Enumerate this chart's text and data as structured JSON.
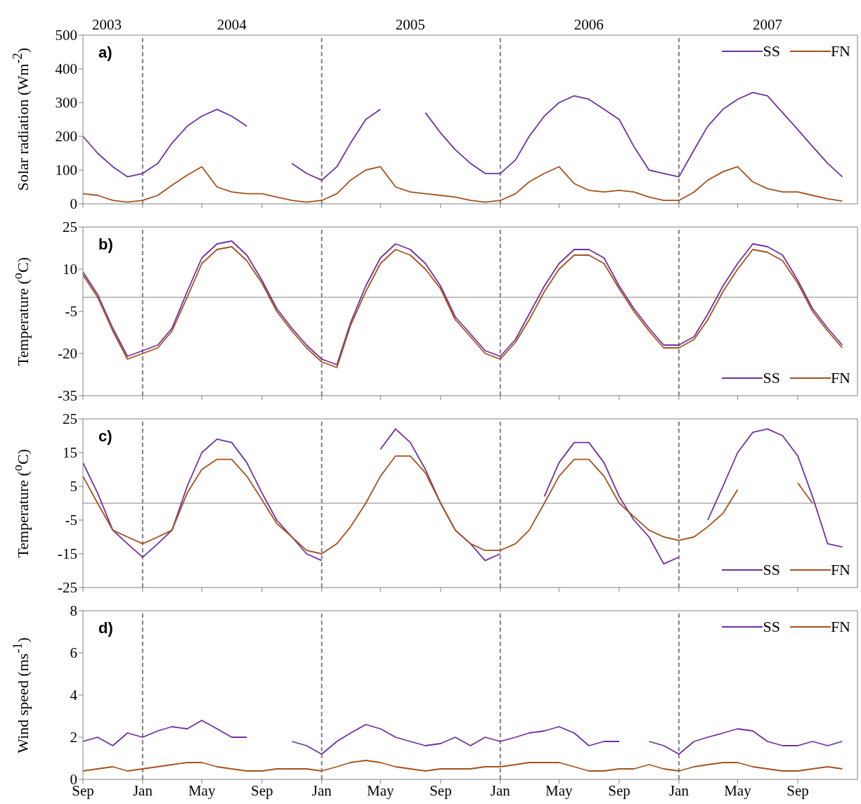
{
  "chart_data": [
    {
      "type": "line",
      "title": "a)",
      "ylabel": "Solar radiation (Wm$^{-2}$)",
      "legend": "top right",
      "tick_labels": "y",
      "x": [
        "2003-09-01",
        "2003-10-01",
        "2003-11-01",
        "2003-12-01",
        "2004-01-01",
        "2004-02-01",
        "2004-03-01",
        "2004-04-01",
        "2004-05-01",
        "2004-06-01",
        "2004-07-01",
        "2004-08-01",
        "2004-09-01",
        "2004-10-01",
        "2004-11-01",
        "2004-12-01",
        "2005-01-01",
        "2005-02-01",
        "2005-03-01",
        "2005-04-01",
        "2005-05-01",
        "2005-06-01",
        "2005-07-01",
        "2005-08-01",
        "2005-09-01",
        "2005-10-01",
        "2005-11-01",
        "2005-12-01",
        "2006-01-01",
        "2006-02-01",
        "2006-03-01",
        "2006-04-01",
        "2006-05-01",
        "2006-06-01",
        "2006-07-01",
        "2006-08-01",
        "2006-09-01",
        "2006-10-01",
        "2006-11-01",
        "2006-12-01",
        "2007-01-01",
        "2007-02-01",
        "2007-03-01",
        "2007-04-01",
        "2007-05-01",
        "2007-06-01",
        "2007-07-01",
        "2007-08-01",
        "2007-09-01",
        "2007-10-01",
        "2007-11-01",
        "2007-12-01"
      ],
      "xlim": [
        "2003-09-01",
        "2008-01-01"
      ],
      "xticks": [
        {
          "value": "2003-09-01",
          "label": null
        },
        {
          "value": "2004-01-01",
          "label": null
        },
        {
          "value": "2004-05-01",
          "label": null
        },
        {
          "value": "2004-09-01",
          "label": null
        },
        {
          "value": "2005-01-01",
          "label": null
        },
        {
          "value": "2005-05-01",
          "label": null
        },
        {
          "value": "2005-09-01",
          "label": null
        },
        {
          "value": "2006-01-01",
          "label": null
        },
        {
          "value": "2006-05-01",
          "label": null
        },
        {
          "value": "2006-09-01",
          "label": null
        },
        {
          "value": "2007-01-01",
          "label": null
        },
        {
          "value": "2007-05-01",
          "label": null
        },
        {
          "value": "2007-09-01",
          "label": null
        }
      ],
      "x2lim": [
        "2003-09-01",
        "2008-01-01"
      ],
      "x2ticks": [
        {
          "value": "2003-10-20",
          "label": "2003"
        },
        {
          "value": "2004-07-01",
          "label": "2004"
        },
        {
          "value": "2005-07-01",
          "label": "2005"
        },
        {
          "value": "2006-07-01",
          "label": "2006"
        },
        {
          "value": "2007-07-01",
          "label": "2007"
        }
      ],
      "ylim": [
        0,
        500
      ],
      "yticks": [
        0,
        100,
        200,
        300,
        400,
        500
      ],
      "ref_lines": [
        {
          "axis": "x",
          "value": "2004-01-01",
          "color": "#808080",
          "line_style": "dashed"
        },
        {
          "axis": "x",
          "value": "2005-01-01",
          "color": "#808080",
          "line_style": "dashed"
        },
        {
          "axis": "x",
          "value": "2006-01-01",
          "color": "#808080",
          "line_style": "dashed"
        },
        {
          "axis": "x",
          "value": "2007-01-01",
          "color": "#808080",
          "line_style": "dashed"
        }
      ],
      "series": [
        {
          "name": "SS",
          "color": "#7030a0",
          "values": [
            200,
            150,
            110,
            80,
            90,
            120,
            180,
            230,
            260,
            280,
            260,
            230,
            null,
            null,
            120,
            90,
            70,
            110,
            180,
            250,
            280,
            null,
            null,
            270,
            210,
            160,
            120,
            90,
            90,
            130,
            200,
            260,
            300,
            320,
            310,
            280,
            250,
            170,
            100,
            90,
            80,
            160,
            230,
            280,
            310,
            330,
            320,
            270,
            220,
            170,
            120,
            80
          ]
        },
        {
          "name": "FN",
          "color": "#a5511c",
          "values": [
            30,
            25,
            10,
            5,
            10,
            25,
            55,
            85,
            110,
            50,
            35,
            30,
            30,
            20,
            10,
            5,
            10,
            30,
            70,
            100,
            110,
            50,
            35,
            30,
            25,
            20,
            10,
            5,
            10,
            30,
            65,
            90,
            110,
            60,
            40,
            35,
            40,
            35,
            20,
            10,
            10,
            35,
            70,
            95,
            110,
            65,
            45,
            35,
            35,
            25,
            15,
            8
          ]
        }
      ]
    },
    {
      "type": "line",
      "title": "b)",
      "ylabel": "Temperature ($^{o}$C)",
      "legend": "bottom right",
      "tick_labels": "y",
      "x": [
        "2003-09-01",
        "2003-10-01",
        "2003-11-01",
        "2003-12-01",
        "2004-01-01",
        "2004-02-01",
        "2004-03-01",
        "2004-04-01",
        "2004-05-01",
        "2004-06-01",
        "2004-07-01",
        "2004-08-01",
        "2004-09-01",
        "2004-10-01",
        "2004-11-01",
        "2004-12-01",
        "2005-01-01",
        "2005-02-01",
        "2005-03-01",
        "2005-04-01",
        "2005-05-01",
        "2005-06-01",
        "2005-07-01",
        "2005-08-01",
        "2005-09-01",
        "2005-10-01",
        "2005-11-01",
        "2005-12-01",
        "2006-01-01",
        "2006-02-01",
        "2006-03-01",
        "2006-04-01",
        "2006-05-01",
        "2006-06-01",
        "2006-07-01",
        "2006-08-01",
        "2006-09-01",
        "2006-10-01",
        "2006-11-01",
        "2006-12-01",
        "2007-01-01",
        "2007-02-01",
        "2007-03-01",
        "2007-04-01",
        "2007-05-01",
        "2007-06-01",
        "2007-07-01",
        "2007-08-01",
        "2007-09-01",
        "2007-10-01",
        "2007-11-01",
        "2007-12-01"
      ],
      "xlim": [
        "2003-09-01",
        "2008-01-01"
      ],
      "xticks": [
        {
          "value": "2003-09-01",
          "label": null
        },
        {
          "value": "2004-01-01",
          "label": null
        },
        {
          "value": "2004-05-01",
          "label": null
        },
        {
          "value": "2004-09-01",
          "label": null
        },
        {
          "value": "2005-01-01",
          "label": null
        },
        {
          "value": "2005-05-01",
          "label": null
        },
        {
          "value": "2005-09-01",
          "label": null
        },
        {
          "value": "2006-01-01",
          "label": null
        },
        {
          "value": "2006-05-01",
          "label": null
        },
        {
          "value": "2006-09-01",
          "label": null
        },
        {
          "value": "2007-01-01",
          "label": null
        },
        {
          "value": "2007-05-01",
          "label": null
        },
        {
          "value": "2007-09-01",
          "label": null
        }
      ],
      "ylim": [
        -35,
        25
      ],
      "yticks": [
        -35,
        -20,
        -5,
        10,
        25
      ],
      "ref_lines": [
        {
          "axis": "y",
          "value": 0,
          "color": "#808080"
        },
        {
          "axis": "x",
          "value": "2004-01-01",
          "color": "#808080",
          "line_style": "dashed"
        },
        {
          "axis": "x",
          "value": "2005-01-01",
          "color": "#808080",
          "line_style": "dashed"
        },
        {
          "axis": "x",
          "value": "2006-01-01",
          "color": "#808080",
          "line_style": "dashed"
        },
        {
          "axis": "x",
          "value": "2007-01-01",
          "color": "#808080",
          "line_style": "dashed"
        }
      ],
      "series": [
        {
          "name": "SS",
          "color": "#7030a0",
          "values": [
            9,
            1,
            -11,
            -21,
            -19,
            -17,
            -11,
            2,
            14,
            19,
            20,
            15,
            6,
            -4,
            -11,
            -17,
            -22,
            -24,
            -9,
            4,
            14,
            19,
            17,
            12,
            4,
            -7,
            -13,
            -19,
            -21,
            -15,
            -6,
            4,
            12,
            17,
            17,
            14,
            4,
            -4,
            -11,
            -17,
            -17,
            -14,
            -6,
            4,
            12,
            19,
            18,
            15,
            6,
            -4,
            -11,
            -17
          ]
        },
        {
          "name": "FN",
          "color": "#a5511c",
          "values": [
            8,
            0,
            -12,
            -22,
            -20,
            -18,
            -12,
            0,
            12,
            17,
            18,
            13,
            5,
            -5,
            -12,
            -18,
            -23,
            -25,
            -10,
            2,
            12,
            17,
            15,
            10,
            3,
            -8,
            -14,
            -20,
            -22,
            -16,
            -8,
            2,
            10,
            15,
            15,
            12,
            3,
            -5,
            -12,
            -18,
            -18,
            -15,
            -8,
            2,
            10,
            17,
            16,
            13,
            5,
            -5,
            -12,
            -18
          ]
        }
      ]
    },
    {
      "type": "line",
      "title": "c)",
      "ylabel": "Temperature ($^{o}$C)",
      "legend": "bottom right",
      "tick_labels": "y",
      "x": [
        "2003-09-01",
        "2003-10-01",
        "2003-11-01",
        "2003-12-01",
        "2004-01-01",
        "2004-02-01",
        "2004-03-01",
        "2004-04-01",
        "2004-05-01",
        "2004-06-01",
        "2004-07-01",
        "2004-08-01",
        "2004-09-01",
        "2004-10-01",
        "2004-11-01",
        "2004-12-01",
        "2005-01-01",
        "2005-02-01",
        "2005-03-01",
        "2005-04-01",
        "2005-05-01",
        "2005-06-01",
        "2005-07-01",
        "2005-08-01",
        "2005-09-01",
        "2005-10-01",
        "2005-11-01",
        "2005-12-01",
        "2006-01-01",
        "2006-02-01",
        "2006-03-01",
        "2006-04-01",
        "2006-05-01",
        "2006-06-01",
        "2006-07-01",
        "2006-08-01",
        "2006-09-01",
        "2006-10-01",
        "2006-11-01",
        "2006-12-01",
        "2007-01-01",
        "2007-02-01",
        "2007-03-01",
        "2007-04-01",
        "2007-05-01",
        "2007-06-01",
        "2007-07-01",
        "2007-08-01",
        "2007-09-01",
        "2007-10-01",
        "2007-11-01",
        "2007-12-01"
      ],
      "xlim": [
        "2003-09-01",
        "2008-01-01"
      ],
      "xticks": [
        {
          "value": "2003-09-01",
          "label": null
        },
        {
          "value": "2004-01-01",
          "label": null
        },
        {
          "value": "2004-05-01",
          "label": null
        },
        {
          "value": "2004-09-01",
          "label": null
        },
        {
          "value": "2005-01-01",
          "label": null
        },
        {
          "value": "2005-05-01",
          "label": null
        },
        {
          "value": "2005-09-01",
          "label": null
        },
        {
          "value": "2006-01-01",
          "label": null
        },
        {
          "value": "2006-05-01",
          "label": null
        },
        {
          "value": "2006-09-01",
          "label": null
        },
        {
          "value": "2007-01-01",
          "label": null
        },
        {
          "value": "2007-05-01",
          "label": null
        },
        {
          "value": "2007-09-01",
          "label": null
        }
      ],
      "ylim": [
        -25,
        25
      ],
      "yticks": [
        -25,
        -15,
        -5,
        5,
        15,
        25
      ],
      "ref_lines": [
        {
          "axis": "y",
          "value": 0,
          "color": "#808080"
        },
        {
          "axis": "x",
          "value": "2004-01-01",
          "color": "#808080",
          "line_style": "dashed"
        },
        {
          "axis": "x",
          "value": "2005-01-01",
          "color": "#808080",
          "line_style": "dashed"
        },
        {
          "axis": "x",
          "value": "2006-01-01",
          "color": "#808080",
          "line_style": "dashed"
        },
        {
          "axis": "x",
          "value": "2007-01-01",
          "color": "#808080",
          "line_style": "dashed"
        }
      ],
      "series": [
        {
          "name": "SS",
          "color": "#7030a0",
          "values": [
            12,
            3,
            -8,
            -12,
            -16,
            -12,
            -8,
            5,
            15,
            19,
            18,
            12,
            3,
            -5,
            -10,
            -15,
            -17,
            null,
            null,
            null,
            16,
            22,
            18,
            10,
            0,
            -8,
            -12,
            -17,
            -15,
            null,
            null,
            2,
            12,
            18,
            18,
            12,
            2,
            -5,
            -10,
            -18,
            -16,
            null,
            -5,
            5,
            15,
            21,
            22,
            20,
            14,
            2,
            -12,
            -13
          ]
        },
        {
          "name": "FN",
          "color": "#a5511c",
          "values": [
            8,
            0,
            -8,
            -10,
            -12,
            -10,
            -8,
            3,
            10,
            13,
            13,
            8,
            1,
            -6,
            -10,
            -14,
            -15,
            -12,
            -7,
            0,
            8,
            14,
            14,
            9,
            0,
            -8,
            -12,
            -14,
            -14,
            -12,
            -8,
            0,
            8,
            13,
            13,
            8,
            0,
            -4,
            -8,
            -10,
            -11,
            -10,
            -7,
            -3,
            4,
            null,
            null,
            null,
            6,
            0,
            null,
            null
          ]
        }
      ]
    },
    {
      "type": "line",
      "title": "d)",
      "ylabel": "Wind speed (ms$^{-1}$)",
      "legend": "top right",
      "x": [
        "2003-09-01",
        "2003-10-01",
        "2003-11-01",
        "2003-12-01",
        "2004-01-01",
        "2004-02-01",
        "2004-03-01",
        "2004-04-01",
        "2004-05-01",
        "2004-06-01",
        "2004-07-01",
        "2004-08-01",
        "2004-09-01",
        "2004-10-01",
        "2004-11-01",
        "2004-12-01",
        "2005-01-01",
        "2005-02-01",
        "2005-03-01",
        "2005-04-01",
        "2005-05-01",
        "2005-06-01",
        "2005-07-01",
        "2005-08-01",
        "2005-09-01",
        "2005-10-01",
        "2005-11-01",
        "2005-12-01",
        "2006-01-01",
        "2006-02-01",
        "2006-03-01",
        "2006-04-01",
        "2006-05-01",
        "2006-06-01",
        "2006-07-01",
        "2006-08-01",
        "2006-09-01",
        "2006-10-01",
        "2006-11-01",
        "2006-12-01",
        "2007-01-01",
        "2007-02-01",
        "2007-03-01",
        "2007-04-01",
        "2007-05-01",
        "2007-06-01",
        "2007-07-01",
        "2007-08-01",
        "2007-09-01",
        "2007-10-01",
        "2007-11-01",
        "2007-12-01"
      ],
      "xlim": [
        "2003-09-01",
        "2008-01-01"
      ],
      "xticks": [
        {
          "value": "2003-09-01",
          "label": "Sep"
        },
        {
          "value": "2004-01-01",
          "label": "Jan"
        },
        {
          "value": "2004-05-01",
          "label": "May"
        },
        {
          "value": "2004-09-01",
          "label": "Sep"
        },
        {
          "value": "2005-01-01",
          "label": "Jan"
        },
        {
          "value": "2005-05-01",
          "label": "May"
        },
        {
          "value": "2005-09-01",
          "label": "Sep"
        },
        {
          "value": "2006-01-01",
          "label": "Jan"
        },
        {
          "value": "2006-05-01",
          "label": "May"
        },
        {
          "value": "2006-09-01",
          "label": "Sep"
        },
        {
          "value": "2007-01-01",
          "label": "Jan"
        },
        {
          "value": "2007-05-01",
          "label": "May"
        },
        {
          "value": "2007-09-01",
          "label": "Sep"
        }
      ],
      "ylim": [
        0,
        8
      ],
      "yticks": [
        0,
        2,
        4,
        6,
        8
      ],
      "ref_lines": [
        {
          "axis": "x",
          "value": "2004-01-01",
          "color": "#808080",
          "line_style": "dashed"
        },
        {
          "axis": "x",
          "value": "2005-01-01",
          "color": "#808080",
          "line_style": "dashed"
        },
        {
          "axis": "x",
          "value": "2006-01-01",
          "color": "#808080",
          "line_style": "dashed"
        },
        {
          "axis": "x",
          "value": "2007-01-01",
          "color": "#808080",
          "line_style": "dashed"
        }
      ],
      "series": [
        {
          "name": "SS",
          "color": "#7030a0",
          "values": [
            1.8,
            2.0,
            1.6,
            2.2,
            2.0,
            2.3,
            2.5,
            2.4,
            2.8,
            2.4,
            2.0,
            2.0,
            null,
            null,
            1.8,
            1.6,
            1.2,
            1.8,
            2.2,
            2.6,
            2.4,
            2.0,
            1.8,
            1.6,
            1.7,
            2.0,
            1.6,
            2.0,
            1.8,
            2.0,
            2.2,
            2.3,
            2.5,
            2.2,
            1.6,
            1.8,
            1.8,
            null,
            1.8,
            1.6,
            1.2,
            1.8,
            2.0,
            2.2,
            2.4,
            2.3,
            1.8,
            1.6,
            1.6,
            1.8,
            1.6,
            1.8
          ]
        },
        {
          "name": "FN",
          "color": "#a5511c",
          "values": [
            0.4,
            0.5,
            0.6,
            0.4,
            0.5,
            0.6,
            0.7,
            0.8,
            0.8,
            0.6,
            0.5,
            0.4,
            0.4,
            0.5,
            0.5,
            0.5,
            0.4,
            0.6,
            0.8,
            0.9,
            0.8,
            0.6,
            0.5,
            0.4,
            0.5,
            0.5,
            0.5,
            0.6,
            0.6,
            0.7,
            0.8,
            0.8,
            0.8,
            0.6,
            0.4,
            0.4,
            0.5,
            0.5,
            0.7,
            0.5,
            0.4,
            0.6,
            0.7,
            0.8,
            0.8,
            0.6,
            0.5,
            0.4,
            0.4,
            0.5,
            0.6,
            0.5
          ]
        }
      ]
    }
  ]
}
